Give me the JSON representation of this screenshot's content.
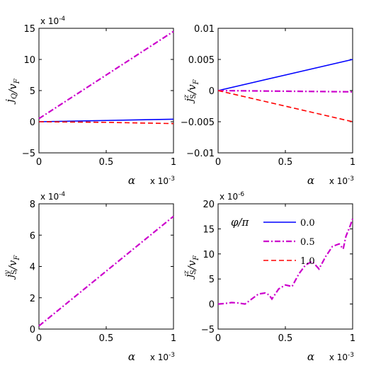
{
  "chart_data": [
    {
      "type": "line",
      "ylabel": "j_Q/v_F",
      "xlabel": "α",
      "x_multiplier": "x 10^-3",
      "y_multiplier": "x 10^-4",
      "xlim": [
        0,
        1
      ],
      "ylim": [
        -5,
        15
      ],
      "xticks": [
        "0",
        "0.5",
        "1"
      ],
      "yticks": [
        "-5",
        "0",
        "5",
        "10",
        "15"
      ],
      "x": [
        0,
        0.25,
        0.5,
        0.75,
        1
      ],
      "series": [
        {
          "phi": "0.0",
          "color": "#0000ff",
          "dash": "solid",
          "values": [
            0,
            0.1,
            0.2,
            0.3,
            0.4
          ]
        },
        {
          "phi": "0.5",
          "color": "#cc00cc",
          "dash": "dashdot",
          "values": [
            0.5,
            4.0,
            7.5,
            11.0,
            14.5
          ]
        },
        {
          "phi": "1.0",
          "color": "#ff0000",
          "dash": "dashed",
          "values": [
            0,
            -0.05,
            -0.1,
            -0.2,
            -0.3
          ]
        }
      ]
    },
    {
      "type": "line",
      "ylabel": "j_S^z/v_F",
      "xlabel": "α",
      "x_multiplier": "x 10^-3",
      "xlim": [
        0,
        1
      ],
      "ylim": [
        -0.01,
        0.01
      ],
      "xticks": [
        "0",
        "0.5",
        "1"
      ],
      "yticks": [
        "-0.01",
        "-0.005",
        "0",
        "0.005",
        "0.01"
      ],
      "x": [
        0,
        0.25,
        0.5,
        0.75,
        1
      ],
      "series": [
        {
          "phi": "0.0",
          "color": "#0000ff",
          "dash": "solid",
          "values": [
            0,
            0.00125,
            0.0025,
            0.00375,
            0.005
          ]
        },
        {
          "phi": "0.5",
          "color": "#cc00cc",
          "dash": "dashdot",
          "values": [
            0,
            -5e-05,
            -0.0001,
            -0.00015,
            -0.0002
          ]
        },
        {
          "phi": "1.0",
          "color": "#ff0000",
          "dash": "dashed",
          "values": [
            0,
            -0.00125,
            -0.0025,
            -0.00375,
            -0.005
          ]
        }
      ]
    },
    {
      "type": "line",
      "ylabel": "j_S^y/v_F",
      "xlabel": "α",
      "x_multiplier": "x 10^-3",
      "y_multiplier": "x 10^-4",
      "xlim": [
        0,
        1
      ],
      "ylim": [
        0,
        8
      ],
      "xticks": [
        "0",
        "0.5",
        "1"
      ],
      "yticks": [
        "0",
        "2",
        "4",
        "6",
        "8"
      ],
      "x": [
        0,
        0.25,
        0.5,
        0.75,
        1
      ],
      "series": [
        {
          "phi": "0.5",
          "color": "#cc00cc",
          "dash": "dashdot",
          "values": [
            0.2,
            1.95,
            3.7,
            5.45,
            7.2
          ]
        }
      ]
    },
    {
      "type": "line",
      "ylabel": "j_S^z/v_F",
      "xlabel": "α",
      "x_multiplier": "x 10^-3",
      "y_multiplier": "x 10^-6",
      "xlim": [
        0,
        1
      ],
      "ylim": [
        -5,
        20
      ],
      "xticks": [
        "0",
        "0.5",
        "1"
      ],
      "yticks": [
        "-5",
        "0",
        "5",
        "10",
        "15",
        "20"
      ],
      "legend": {
        "title": "φ/π",
        "placement": "top-left",
        "entries": [
          "0.0",
          "0.5",
          "1.0"
        ]
      },
      "x": [
        0,
        0.05,
        0.1,
        0.15,
        0.2,
        0.25,
        0.3,
        0.35,
        0.38,
        0.4,
        0.45,
        0.5,
        0.55,
        0.6,
        0.65,
        0.7,
        0.75,
        0.8,
        0.85,
        0.9,
        0.93,
        0.95,
        0.98,
        1.0
      ],
      "series": [
        {
          "phi": "0.5",
          "color": "#cc00cc",
          "dash": "dashdot",
          "values": [
            0,
            0.1,
            0.3,
            0.2,
            0.0,
            1.0,
            2.0,
            2.2,
            1.8,
            1.0,
            3.0,
            3.8,
            3.5,
            6.0,
            7.8,
            8.5,
            7.0,
            9.5,
            11.5,
            12.0,
            11.0,
            13.5,
            15.5,
            17.0
          ]
        }
      ]
    }
  ]
}
